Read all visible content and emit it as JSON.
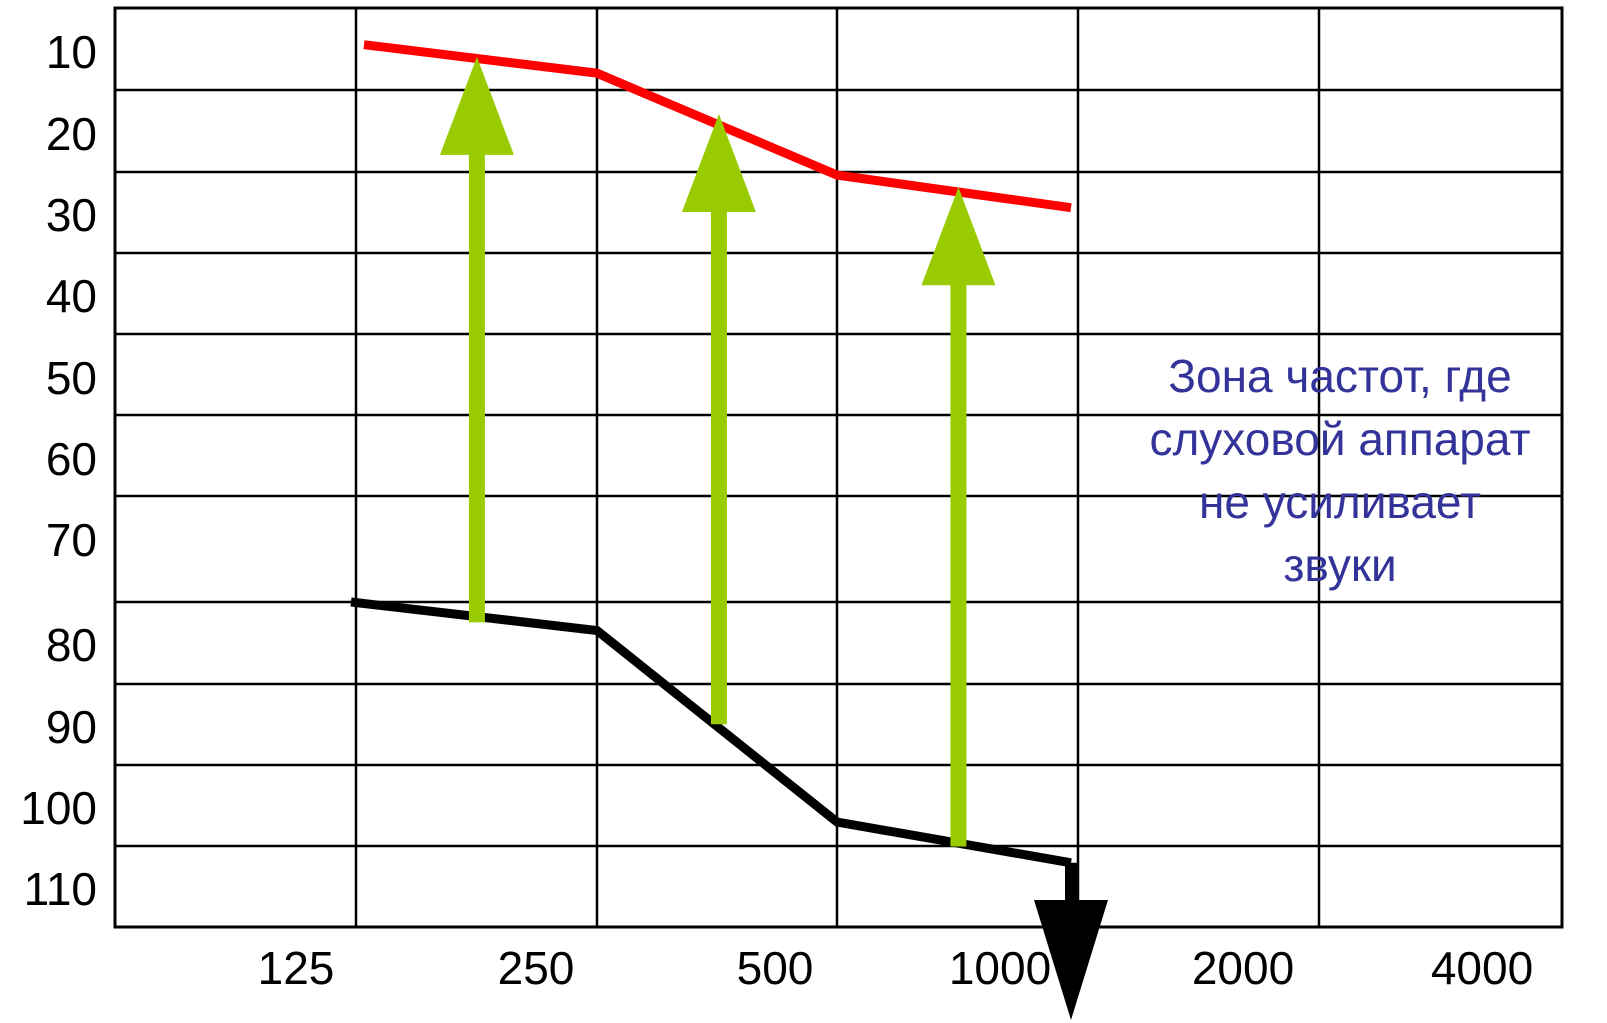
{
  "chart_data": {
    "type": "line",
    "title": "",
    "xlabel": "",
    "ylabel": "",
    "x_categories": [
      "125",
      "250",
      "500",
      "1000",
      "2000",
      "4000"
    ],
    "y_ticks": [
      "10",
      "20",
      "30",
      "40",
      "50",
      "60",
      "70",
      "80",
      "90",
      "100",
      "110"
    ],
    "ylim": [
      5,
      115
    ],
    "y_inverted": true,
    "grid": true,
    "series": [
      {
        "color": "#ff0000",
        "points": [
          {
            "x": "125",
            "y": 9.5
          },
          {
            "x": "250",
            "y": 13
          },
          {
            "x": "500",
            "y": 25.5
          },
          {
            "x": "1000",
            "y": 29.5
          }
        ]
      },
      {
        "color": "#000000",
        "points": [
          {
            "x": "125",
            "y": 75
          },
          {
            "x": "250",
            "y": 78.5
          },
          {
            "x": "500",
            "y": 102
          },
          {
            "x": "1000",
            "y": 107
          }
        ],
        "end_marker": "arrow-down"
      }
    ],
    "arrows": [
      {
        "color": "#99cc00",
        "x": "177",
        "from": 77.5,
        "to": 11
      },
      {
        "color": "#99cc00",
        "x": "355",
        "from": 90,
        "to": 18
      },
      {
        "color": "#99cc00",
        "x": "707",
        "from": 105,
        "to": 27
      }
    ],
    "annotation": {
      "lines": [
        "Зона частот, где",
        "слуховой аппарат",
        "не усиливает",
        "звуки"
      ],
      "color": "#333399"
    }
  }
}
